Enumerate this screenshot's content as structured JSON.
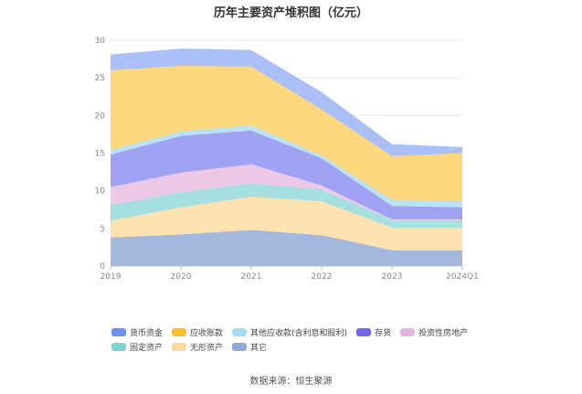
{
  "chart_data": {
    "type": "area",
    "stacked": true,
    "title": "历年主要资产堆积图（亿元）",
    "categories": [
      "2019",
      "2020",
      "2021",
      "2022",
      "2023",
      "2024Q1"
    ],
    "ylim": [
      0,
      30
    ],
    "yticks": [
      0,
      5,
      10,
      15,
      20,
      25,
      30
    ],
    "grid": true,
    "legend_position": "bottom",
    "series": [
      {
        "name": "其它",
        "color": "#a3b8dc",
        "values": [
          3.8,
          4.2,
          4.8,
          4.1,
          2.1,
          2.1
        ]
      },
      {
        "name": "无形资产",
        "color": "#fde2b0",
        "values": [
          2.2,
          3.6,
          4.4,
          4.5,
          3.0,
          3.0
        ]
      },
      {
        "name": "固定资产",
        "color": "#a6dfe0",
        "values": [
          2.1,
          2.0,
          1.8,
          1.6,
          1.0,
          1.0
        ]
      },
      {
        "name": "投资性房地产",
        "color": "#ecc8e6",
        "values": [
          2.4,
          2.6,
          2.5,
          0.5,
          0.1,
          0.1
        ]
      },
      {
        "name": "存货",
        "color": "#9fa2f2",
        "values": [
          4.3,
          4.9,
          4.5,
          3.6,
          1.8,
          1.6
        ]
      },
      {
        "name": "其他应收款(含利息和股利)",
        "color": "#b9e3f5",
        "values": [
          0.6,
          0.6,
          0.7,
          0.4,
          0.8,
          0.9
        ]
      },
      {
        "name": "应收账款",
        "color": "#fed67b",
        "values": [
          10.6,
          8.7,
          7.8,
          6.1,
          5.8,
          6.3
        ]
      },
      {
        "name": "货币资金",
        "color": "#abbff7",
        "values": [
          2.1,
          2.3,
          2.2,
          2.3,
          1.6,
          0.8
        ]
      }
    ]
  },
  "legend": {
    "items": [
      {
        "label": "货币资金",
        "color": "#6e8ef0"
      },
      {
        "label": "应收账款",
        "color": "#fbbc2d"
      },
      {
        "label": "其他应收款(含利息和股利)",
        "color": "#a4dcf3"
      },
      {
        "label": "存货",
        "color": "#6f66e8"
      },
      {
        "label": "投资性房地产",
        "color": "#e6b4df"
      },
      {
        "label": "固定资产",
        "color": "#7fd2d4"
      },
      {
        "label": "无形资产",
        "color": "#fdd89a"
      },
      {
        "label": "其它",
        "color": "#91a9d9"
      }
    ]
  },
  "source": "数据来源：恒生聚源"
}
